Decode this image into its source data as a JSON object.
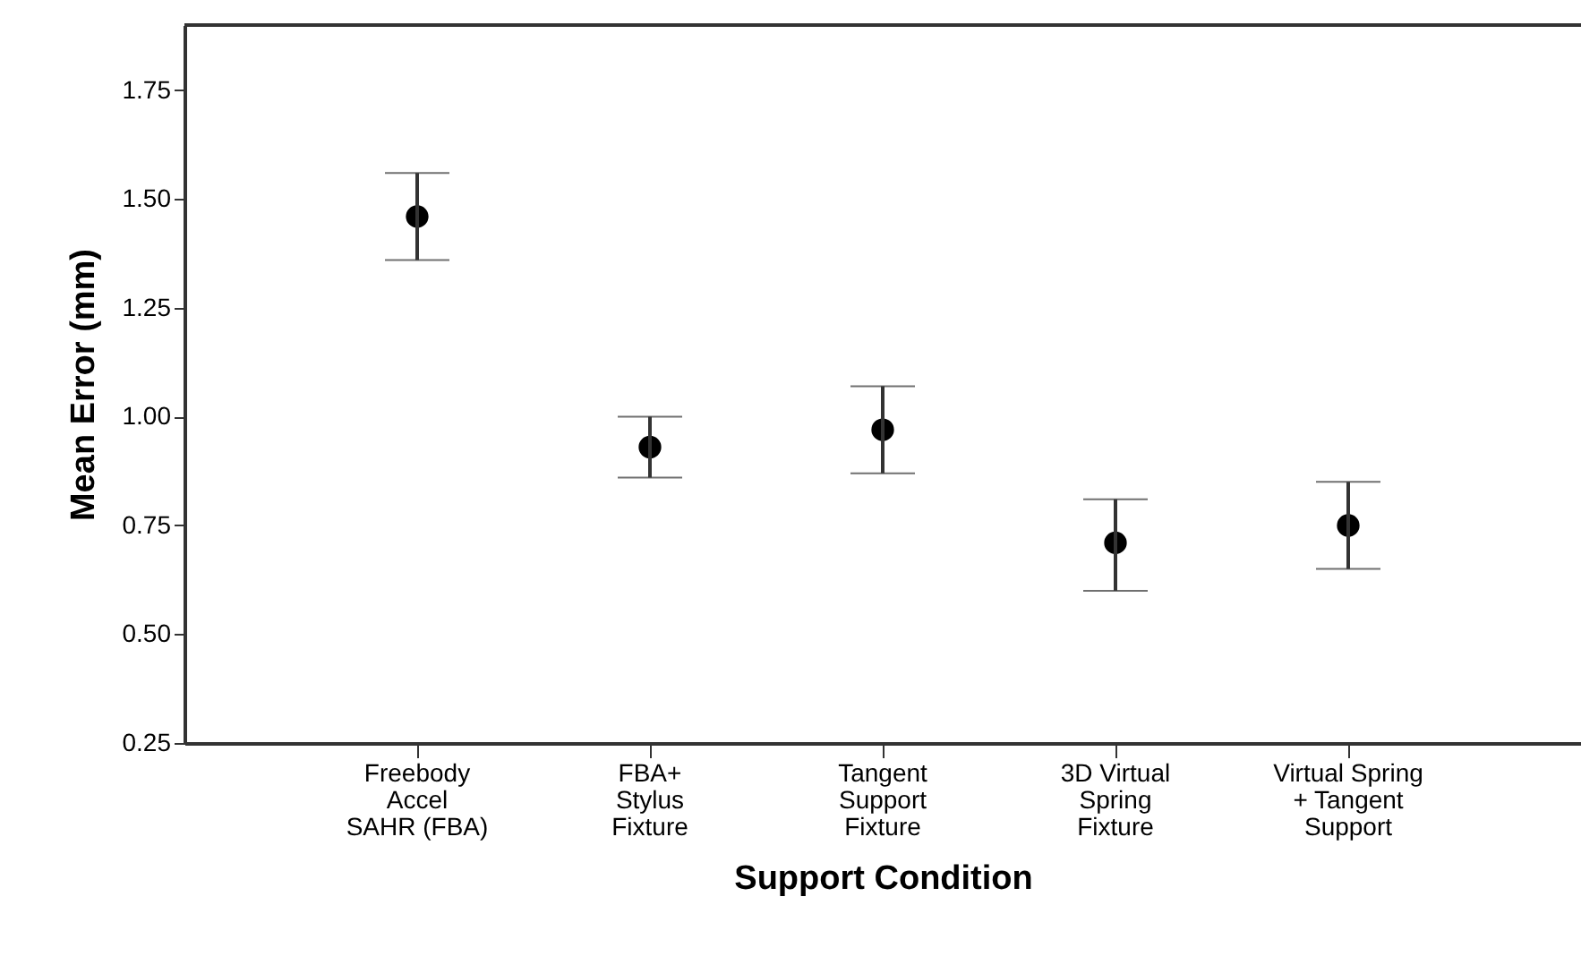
{
  "chart_data": {
    "type": "scatter",
    "xlabel": "Support Condition",
    "ylabel": "Mean Error (mm)",
    "categories": [
      "Freebody\nAccel\nSAHR (FBA)",
      "FBA+\nStylus\nFixture",
      "Tangent\nSupport\nFixture",
      "3D Virtual\nSpring\nFixture",
      "Virtual Spring\n+ Tangent\nSupport"
    ],
    "values": [
      1.46,
      0.93,
      0.97,
      0.71,
      0.75
    ],
    "errors": [
      [
        1.36,
        1.56
      ],
      [
        0.86,
        1.0
      ],
      [
        0.87,
        1.07
      ],
      [
        0.6,
        0.81
      ],
      [
        0.65,
        0.85
      ]
    ],
    "color": "#000000",
    "marker": "circle",
    "grid": false,
    "ylim": [
      0.25,
      1.9
    ],
    "yticks": [
      0.25,
      {
        "value": 0.5,
        "label": "0.50"
      },
      0.75,
      {
        "value": 1.0,
        "label": "1.00"
      },
      1.25,
      {
        "value": 1.5,
        "label": "1.50"
      },
      1.75
    ]
  }
}
